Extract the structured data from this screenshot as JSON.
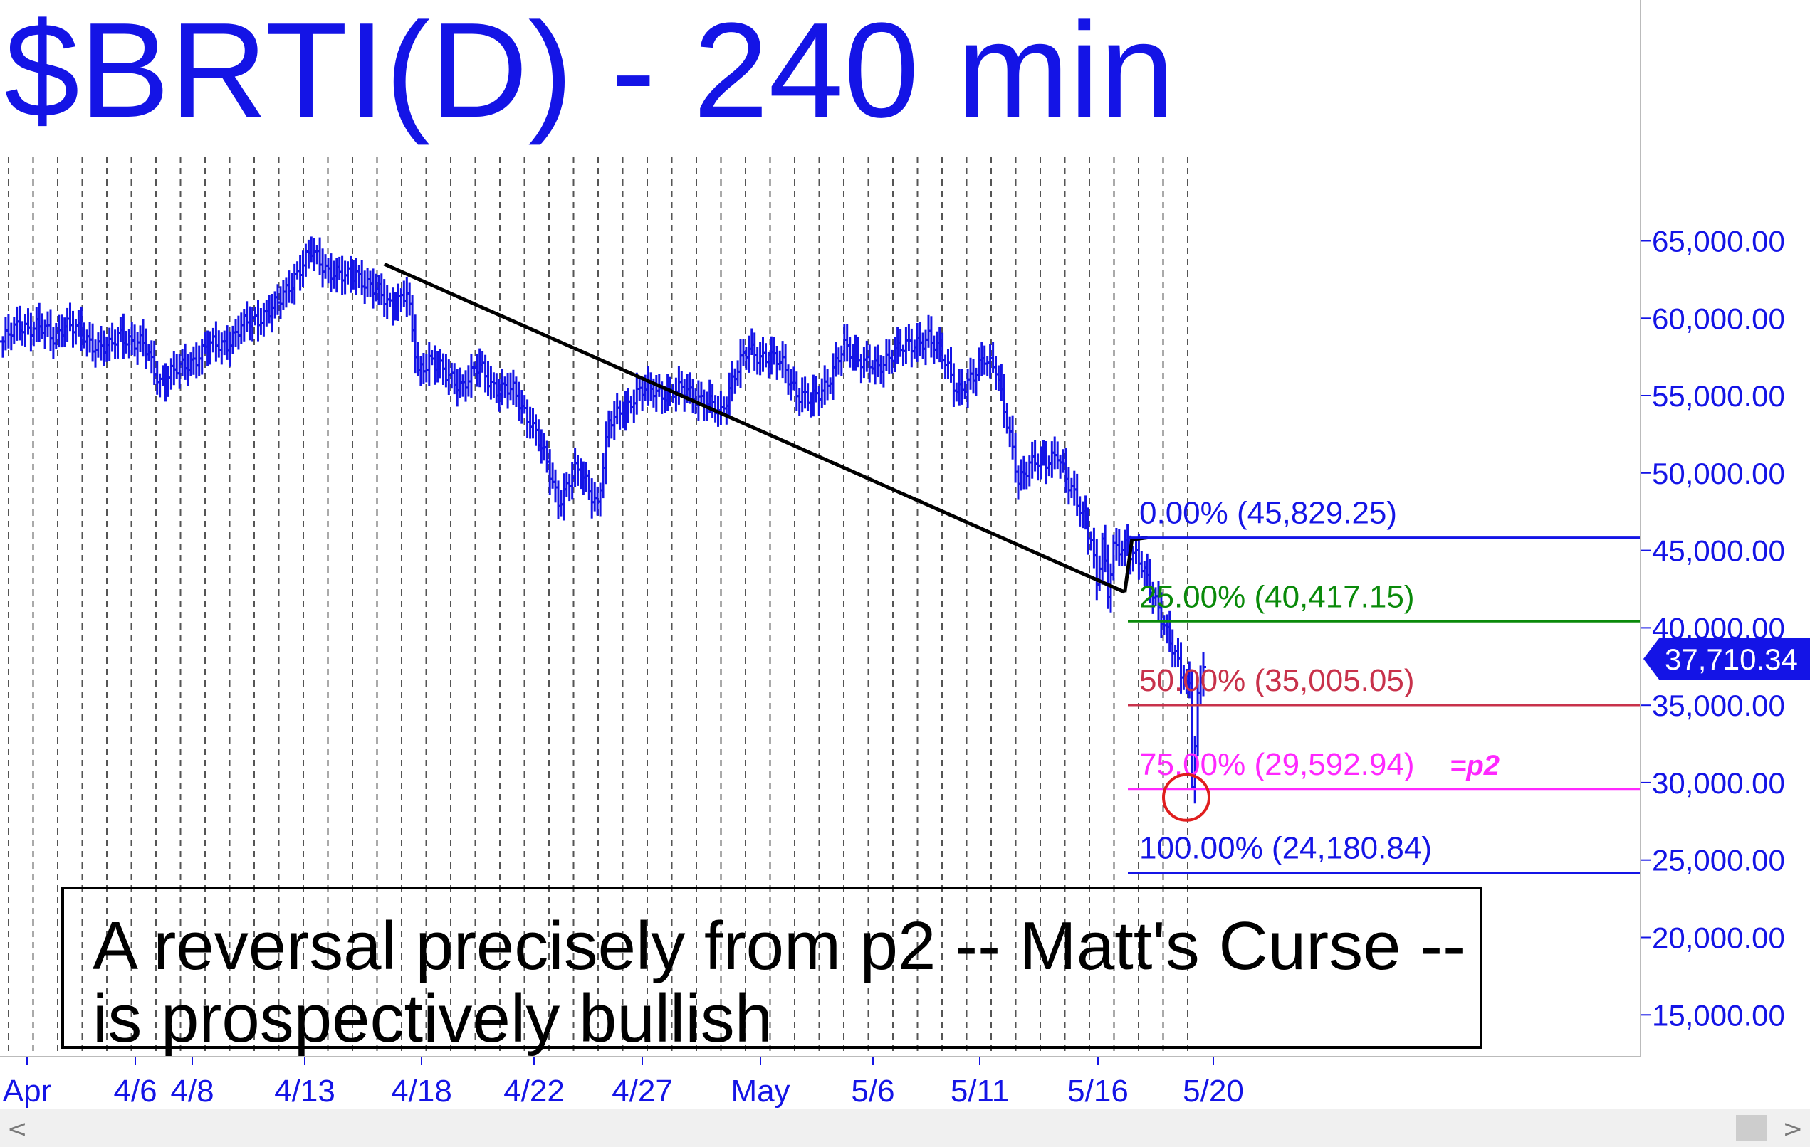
{
  "title": "$BRTI(D) - 240 min",
  "colors": {
    "price_bars": "#1414e6",
    "trendline": "#000000",
    "fib_0": "#1414e6",
    "fib_25": "#0a8a0a",
    "fib_50": "#c8324b",
    "fib_75": "#ff28ff",
    "fib_100": "#1414e6",
    "circle": "#e01e1e",
    "grid": "#555555",
    "axis": "#1414e6"
  },
  "chart_data": {
    "type": "ohlc",
    "title": "$BRTI(D) - 240 min",
    "interval": "240 min",
    "x_tick_labels": [
      "Apr",
      "4/6",
      "4/8",
      "4/13",
      "4/18",
      "4/22",
      "4/27",
      "May",
      "5/6",
      "5/11",
      "5/16",
      "5/20"
    ],
    "y_tick_labels": [
      "65,000.00",
      "60,000.00",
      "55,000.00",
      "50,000.00",
      "45,000.00",
      "40,000.00",
      "35,000.00",
      "30,000.00",
      "25,000.00",
      "20,000.00",
      "15,000.00"
    ],
    "y_ticks": [
      65000,
      60000,
      55000,
      50000,
      45000,
      40000,
      35000,
      30000,
      25000,
      20000,
      15000
    ],
    "ylim": [
      12300,
      68700
    ],
    "last_price": 37710.34,
    "last_price_label": "37,710.34",
    "grid": "vertical dashed lines (one per session)",
    "price_path": [
      [
        0,
        58500
      ],
      [
        6,
        59500
      ],
      [
        12,
        59500
      ],
      [
        18,
        58700
      ],
      [
        22,
        59800
      ],
      [
        30,
        58600
      ],
      [
        38,
        58000
      ],
      [
        42,
        59000
      ],
      [
        50,
        58200
      ],
      [
        56,
        56000
      ],
      [
        64,
        56800
      ],
      [
        72,
        58000
      ],
      [
        80,
        58500
      ],
      [
        86,
        59500
      ],
      [
        92,
        60200
      ],
      [
        98,
        60800
      ],
      [
        104,
        62800
      ],
      [
        110,
        64200
      ],
      [
        116,
        63200
      ],
      [
        122,
        62500
      ],
      [
        126,
        63000
      ],
      [
        132,
        61800
      ],
      [
        138,
        61000
      ],
      [
        144,
        61500
      ],
      [
        148,
        56500
      ],
      [
        152,
        57500
      ],
      [
        158,
        56200
      ],
      [
        164,
        55800
      ],
      [
        170,
        56800
      ],
      [
        176,
        55500
      ],
      [
        182,
        55200
      ],
      [
        188,
        53500
      ],
      [
        194,
        50500
      ],
      [
        198,
        48300
      ],
      [
        204,
        50000
      ],
      [
        208,
        49500
      ],
      [
        212,
        48000
      ],
      [
        216,
        53000
      ],
      [
        220,
        54000
      ],
      [
        226,
        55000
      ],
      [
        232,
        55500
      ],
      [
        238,
        55000
      ],
      [
        244,
        55500
      ],
      [
        250,
        54500
      ],
      [
        256,
        54000
      ],
      [
        260,
        56000
      ],
      [
        266,
        58000
      ],
      [
        272,
        57500
      ],
      [
        278,
        57000
      ],
      [
        284,
        55000
      ],
      [
        288,
        54500
      ],
      [
        294,
        56000
      ],
      [
        300,
        58000
      ],
      [
        306,
        57500
      ],
      [
        312,
        56500
      ],
      [
        318,
        58200
      ],
      [
        324,
        58000
      ],
      [
        330,
        59000
      ],
      [
        336,
        57000
      ],
      [
        340,
        55500
      ],
      [
        346,
        56000
      ],
      [
        350,
        57500
      ],
      [
        354,
        57000
      ],
      [
        358,
        53000
      ],
      [
        362,
        49500
      ],
      [
        366,
        50800
      ],
      [
        372,
        50500
      ],
      [
        376,
        51500
      ],
      [
        380,
        49200
      ],
      [
        384,
        47500
      ],
      [
        388,
        46000
      ],
      [
        390,
        43000
      ],
      [
        392,
        45500
      ],
      [
        394,
        42000
      ],
      [
        396,
        45000
      ],
      [
        400,
        45500
      ],
      [
        404,
        44500
      ],
      [
        408,
        43000
      ],
      [
        412,
        41500
      ],
      [
        416,
        39000
      ],
      [
        420,
        37000
      ],
      [
        423,
        36500
      ],
      [
        424,
        29700
      ],
      [
        426,
        35500
      ],
      [
        428,
        37710
      ]
    ],
    "trendline": {
      "from": [
        136,
        63500
      ],
      "to": [
        400,
        42300
      ]
    },
    "fib_levels": [
      {
        "label": "0.00% (45,829.25)",
        "pct": "0.00%",
        "value": 45829.25
      },
      {
        "label": "25.00% (40,417.15)",
        "pct": "25.00%",
        "value": 40417.15
      },
      {
        "label": "50.00% (35,005.05)",
        "pct": "50.00%",
        "value": 35005.05
      },
      {
        "label": "75.00% (29,592.94)",
        "pct": "75.00%",
        "value": 29592.94,
        "suffix": "=p2"
      },
      {
        "label": "100.00% (24,180.84)",
        "pct": "100.00%",
        "value": 24180.84
      }
    ],
    "circled_value": 29592.94
  },
  "annotation": {
    "line1": "A reversal precisely from p2 -- Matt's Curse --",
    "line2": "is prospectively bullish"
  },
  "scrollbar": {
    "left_arrow": "<",
    "right_arrow": ">"
  }
}
